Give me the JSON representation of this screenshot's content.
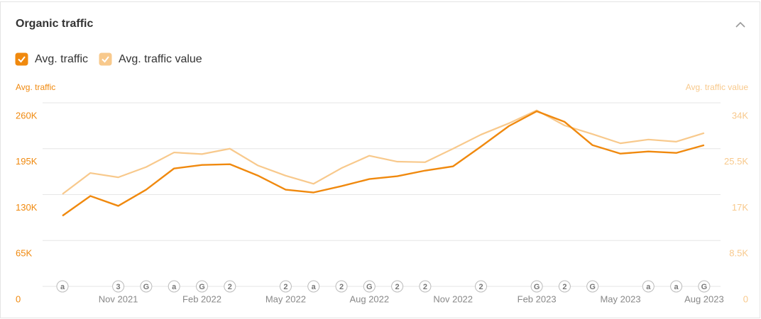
{
  "header": {
    "title": "Organic traffic"
  },
  "chart_data": {
    "type": "line",
    "ylabel": "Avg. traffic",
    "y2label": "Avg. traffic value",
    "categories": [
      null,
      null,
      "Nov 2021",
      null,
      null,
      "Feb 2022",
      null,
      null,
      "May 2022",
      null,
      null,
      "Aug 2022",
      null,
      null,
      "Nov 2022",
      null,
      null,
      "Feb 2023",
      null,
      null,
      "May 2023",
      null,
      null,
      "Aug 2023"
    ],
    "series": [
      {
        "name": "Avg. traffic",
        "color": "#f0890e",
        "checked": true,
        "values": [
          100000,
          128000,
          114000,
          137000,
          167000,
          172000,
          173000,
          157000,
          137000,
          133000,
          142000,
          152000,
          156000,
          164000,
          170000,
          198000,
          227000,
          248000,
          233000,
          200000,
          188000,
          191000,
          189000,
          200000
        ]
      },
      {
        "name": "Avg. traffic value",
        "color": "#f8c98c",
        "checked": true,
        "axis": "y2",
        "values": [
          17100,
          21000,
          20200,
          22100,
          24800,
          24500,
          25500,
          22400,
          20500,
          19000,
          21900,
          24200,
          23100,
          23000,
          25500,
          28100,
          30200,
          32600,
          29800,
          28200,
          26500,
          27200,
          26800,
          28400
        ]
      }
    ],
    "annotations": [
      "a",
      null,
      "3",
      "G",
      "a",
      "G",
      "2",
      null,
      "2",
      "a",
      "2",
      "G",
      "2",
      "2",
      null,
      "2",
      null,
      "G",
      "2",
      "G",
      null,
      "a",
      "a",
      "G"
    ],
    "ylim": [
      0,
      260000
    ],
    "yticks": [
      0,
      {
        "value": 65000,
        "label": "65K"
      },
      {
        "value": 130000,
        "label": "130K"
      },
      {
        "value": 195000,
        "label": "195K"
      },
      {
        "value": 260000,
        "label": "260K"
      }
    ],
    "y2lim": [
      0,
      34000
    ],
    "y2ticks": [
      0,
      {
        "value": 8500,
        "label": "8.5K"
      },
      {
        "value": 17000,
        "label": "17K"
      },
      {
        "value": 25500,
        "label": "25.5K"
      },
      {
        "value": 34000,
        "label": "34K"
      }
    ],
    "grid": true
  }
}
